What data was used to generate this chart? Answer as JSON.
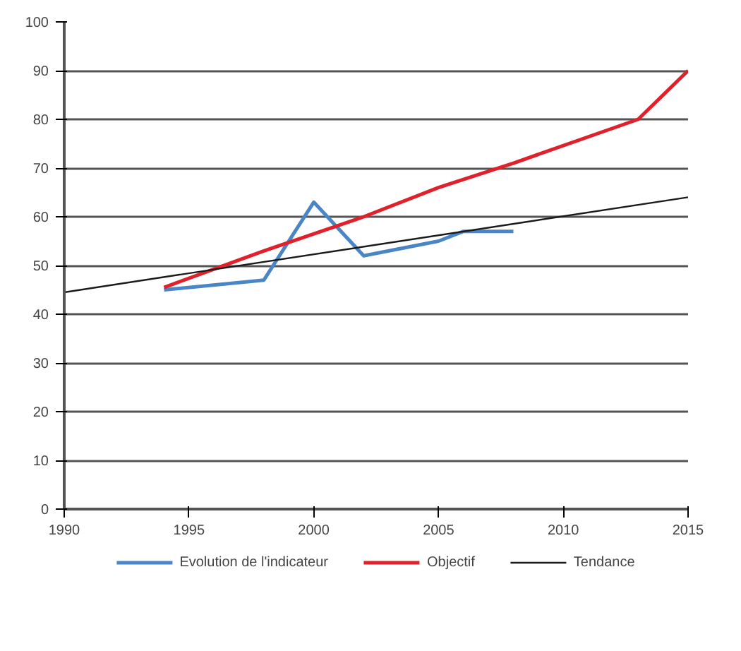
{
  "chart_data": {
    "type": "line",
    "x": [
      1994,
      1998,
      2000,
      2002,
      2005,
      2006,
      2008
    ],
    "series": [
      {
        "name": "Evolution de l'indicateur",
        "color": "#4a86c5",
        "values": [
          45,
          47,
          63,
          52,
          55,
          57,
          57
        ]
      },
      {
        "name": "Objectif",
        "color": "#e0202a",
        "x": [
          1994,
          1998,
          2002,
          2005,
          2008,
          2013,
          2015
        ],
        "values": [
          45.5,
          53,
          60,
          66,
          71,
          80,
          90
        ]
      },
      {
        "name": "Tendance",
        "color": "#1a1a1a",
        "x": [
          1990,
          2015
        ],
        "values": [
          44.5,
          64
        ]
      }
    ],
    "xlim": [
      1990,
      2015
    ],
    "xticks": [
      1990,
      1995,
      2000,
      2005,
      2010,
      2015
    ],
    "ylim": [
      0,
      100
    ],
    "yticks": [
      0,
      10,
      20,
      30,
      40,
      50,
      60,
      70,
      80,
      90,
      100
    ],
    "grid": "y",
    "legend": "bottom",
    "marker": "none",
    "line_style": "solid"
  }
}
